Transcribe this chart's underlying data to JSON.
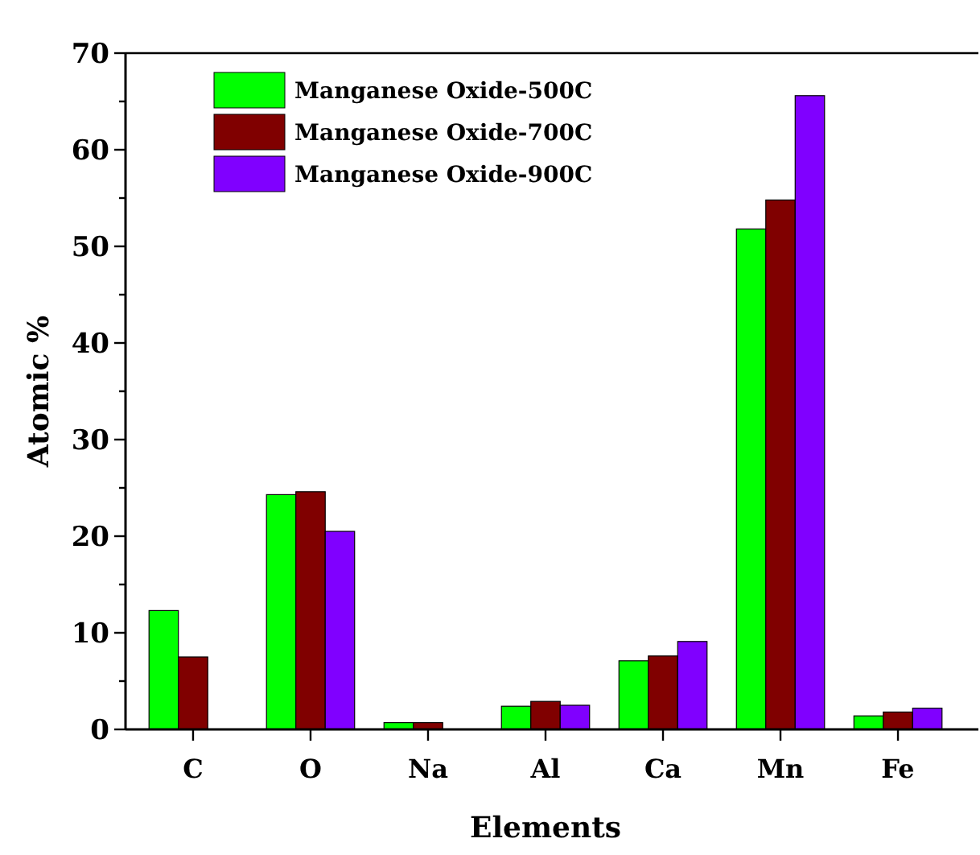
{
  "chart_data": {
    "type": "bar",
    "xlabel": "Elements",
    "ylabel": "Atomic %",
    "categories": [
      "C",
      "O",
      "Na",
      "Al",
      "Ca",
      "Mn",
      "Fe"
    ],
    "series": [
      {
        "name": "Manganese Oxide-500C",
        "color": "#00ff00",
        "values": [
          12.3,
          24.3,
          0.7,
          2.4,
          7.1,
          51.8,
          1.4
        ]
      },
      {
        "name": "Manganese Oxide-700C",
        "color": "#800000",
        "values": [
          7.5,
          24.6,
          0.7,
          2.9,
          7.6,
          54.8,
          1.8
        ]
      },
      {
        "name": "Manganese Oxide-900C",
        "color": "#8000ff",
        "values": [
          null,
          20.5,
          null,
          2.5,
          9.1,
          65.6,
          2.2
        ]
      }
    ],
    "ylim": [
      0,
      70
    ],
    "yticks": [
      0,
      {
        "value": 5,
        "label": null
      },
      10,
      {
        "value": 15,
        "label": null
      },
      20,
      {
        "value": 25,
        "label": null
      },
      30,
      {
        "value": 35,
        "label": null
      },
      40,
      {
        "value": 45,
        "label": null
      },
      50,
      {
        "value": 55,
        "label": null
      },
      60,
      {
        "value": 65,
        "label": null
      },
      70
    ],
    "legend": "top left",
    "grid": false
  }
}
